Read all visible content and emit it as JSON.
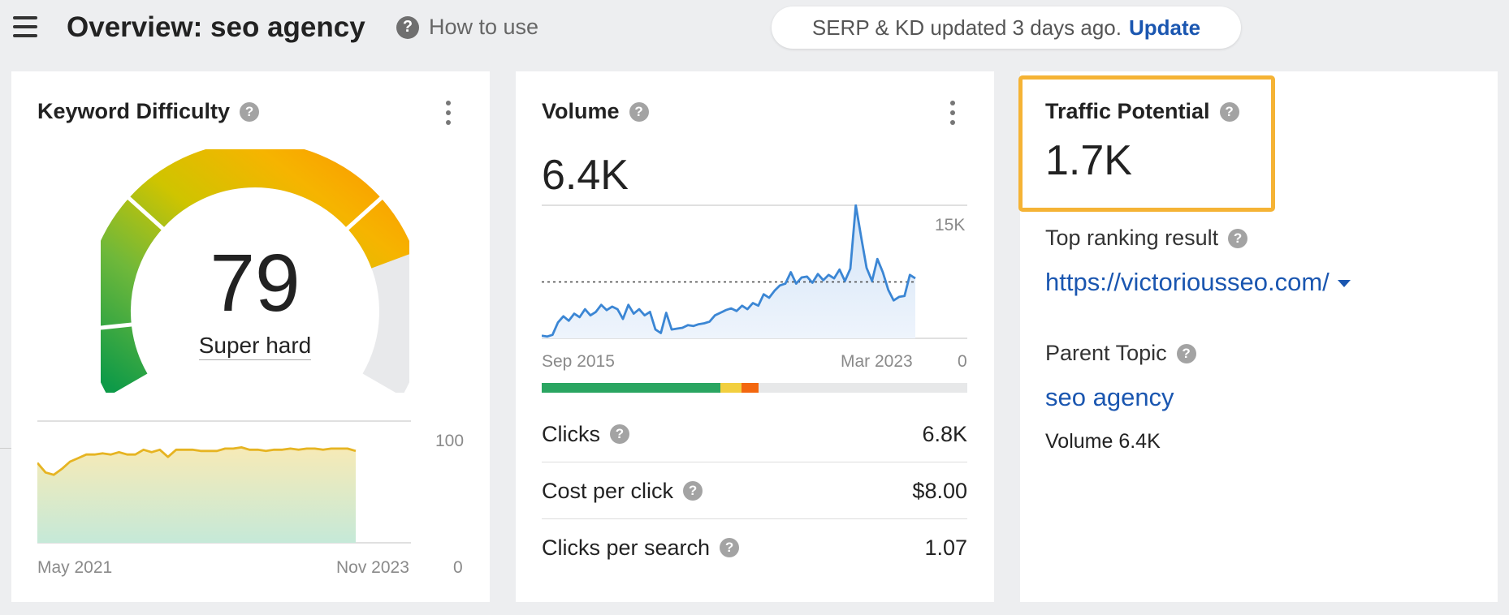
{
  "header": {
    "title": "Overview: seo agency",
    "how_to_use": "How to use",
    "serp_text": "SERP & KD updated 3 days ago.",
    "update_label": "Update",
    "menu_icon": "hamburger-icon",
    "help_icon": "question-circle-icon"
  },
  "keyword_difficulty": {
    "title": "Keyword Difficulty",
    "score": "79",
    "score_value": 79,
    "label": "Super hard",
    "chart_start": "May 2021",
    "chart_end": "Nov 2023",
    "chart_max": "100",
    "chart_min": "0"
  },
  "volume": {
    "title": "Volume",
    "value": "6.4K",
    "chart_max": "15K",
    "chart_min": "0",
    "chart_start": "Sep 2015",
    "chart_end": "Mar 2023",
    "metrics": [
      {
        "label": "Clicks",
        "value": "6.8K"
      },
      {
        "label": "Cost per click",
        "value": "$8.00"
      },
      {
        "label": "Clicks per search",
        "value": "1.07"
      }
    ],
    "click_bar": [
      {
        "color": "#2aa561",
        "percent": 42
      },
      {
        "color": "#f2cf3f",
        "percent": 5
      },
      {
        "color": "#f3670f",
        "percent": 4
      },
      {
        "color": "#e7e8e9",
        "percent": 49
      }
    ]
  },
  "traffic_potential": {
    "title": "Traffic Potential",
    "value": "1.7K",
    "top_result_label": "Top ranking result",
    "top_result_url": "https://victoriousseo.com/",
    "parent_topic_label": "Parent Topic",
    "parent_topic": "seo agency",
    "parent_volume": "Volume 6.4K"
  },
  "colors": {
    "accent": "#1a56b0",
    "highlight": "#f5b335",
    "kd_line": "#e6b422",
    "volume_line": "#3b86d4"
  },
  "chart_data": [
    {
      "type": "area",
      "name": "Keyword Difficulty history",
      "xlabel": "",
      "ylabel": "",
      "x_range": [
        "May 2021",
        "Nov 2023"
      ],
      "ylim": [
        0,
        100
      ],
      "values": [
        67,
        59,
        57,
        62,
        68,
        71,
        74,
        74,
        75,
        74,
        76,
        74,
        74,
        78,
        76,
        78,
        72,
        78,
        78,
        78,
        77,
        77,
        77,
        79,
        79,
        80,
        78,
        78,
        77,
        78,
        78,
        79,
        78,
        79,
        79,
        78,
        79,
        79,
        79,
        77
      ]
    },
    {
      "type": "area",
      "name": "Search volume history",
      "xlabel": "",
      "ylabel": "",
      "x_range": [
        "Sep 2015",
        "Mar 2023"
      ],
      "ylim": [
        0,
        15000
      ],
      "avg": 6400,
      "values": [
        300,
        200,
        400,
        1800,
        2500,
        2000,
        2800,
        2400,
        3300,
        2600,
        3000,
        3800,
        3200,
        3600,
        3300,
        2200,
        3800,
        2800,
        3300,
        2600,
        3000,
        1000,
        600,
        2900,
        1000,
        1100,
        1200,
        1500,
        1400,
        1600,
        1700,
        1900,
        2600,
        2900,
        3200,
        3400,
        3100,
        3700,
        3300,
        4000,
        3700,
        5000,
        4600,
        5400,
        6000,
        6200,
        7500,
        6200,
        6900,
        7000,
        6300,
        7300,
        6600,
        7200,
        6800,
        7800,
        6500,
        7900,
        15100,
        11500,
        8000,
        6500,
        9000,
        7500,
        5500,
        4300,
        4700,
        4800,
        7200,
        6800
      ]
    }
  ]
}
